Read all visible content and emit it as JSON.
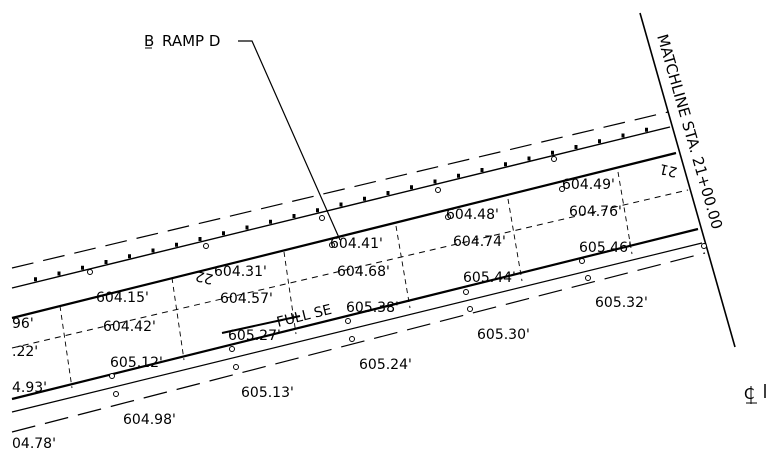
{
  "labels": {
    "ramp": "RAMP D",
    "matchline": "MATCHLINE STA. 21+00.00",
    "full_se": "FULL SE",
    "station_21": "21",
    "station_22": "22"
  },
  "elevations": {
    "row_top": [
      "604.49'",
      "604.48'",
      "604.41'",
      "604.31'",
      "604.15'",
      "96'"
    ],
    "row_2": [
      "604.76'",
      "604.74'",
      "604.68'",
      "604.57'",
      "604.42'",
      ".22'"
    ],
    "row_3": [
      "605.46'",
      "605.44'",
      "605.38'",
      "605.27'",
      "605.12'",
      "4.93'"
    ],
    "row_bottom": [
      "605.32'",
      "605.30'",
      "605.24'",
      "605.13'",
      "604.98'",
      "04.78'"
    ]
  }
}
